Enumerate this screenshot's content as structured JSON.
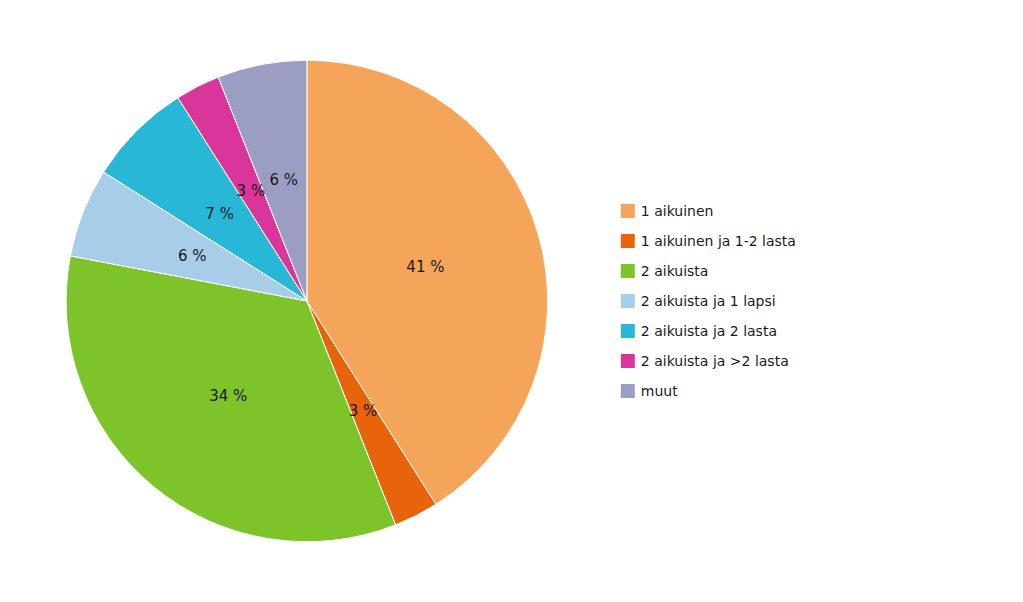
{
  "chart_data": {
    "type": "pie",
    "categories": [
      "1 aikuinen",
      "1 aikuinen ja 1-2 lasta",
      "2 aikuista",
      "2 aikuista ja 1 lapsi",
      "2 aikuista ja 2 lasta",
      "2 aikuista ja >2 lasta",
      "muut"
    ],
    "values": [
      41,
      3,
      34,
      6,
      7,
      3,
      6
    ],
    "value_labels": [
      "41 %",
      "3 %",
      "34 %",
      "6 %",
      "7 %",
      "3 %",
      "6 %"
    ],
    "colors": [
      "#F5A55A",
      "#E8640A",
      "#7DC42A",
      "#A8CDE8",
      "#29B7D8",
      "#D9359A",
      "#9B9EC2"
    ],
    "data_labels": true,
    "legend": "right"
  }
}
